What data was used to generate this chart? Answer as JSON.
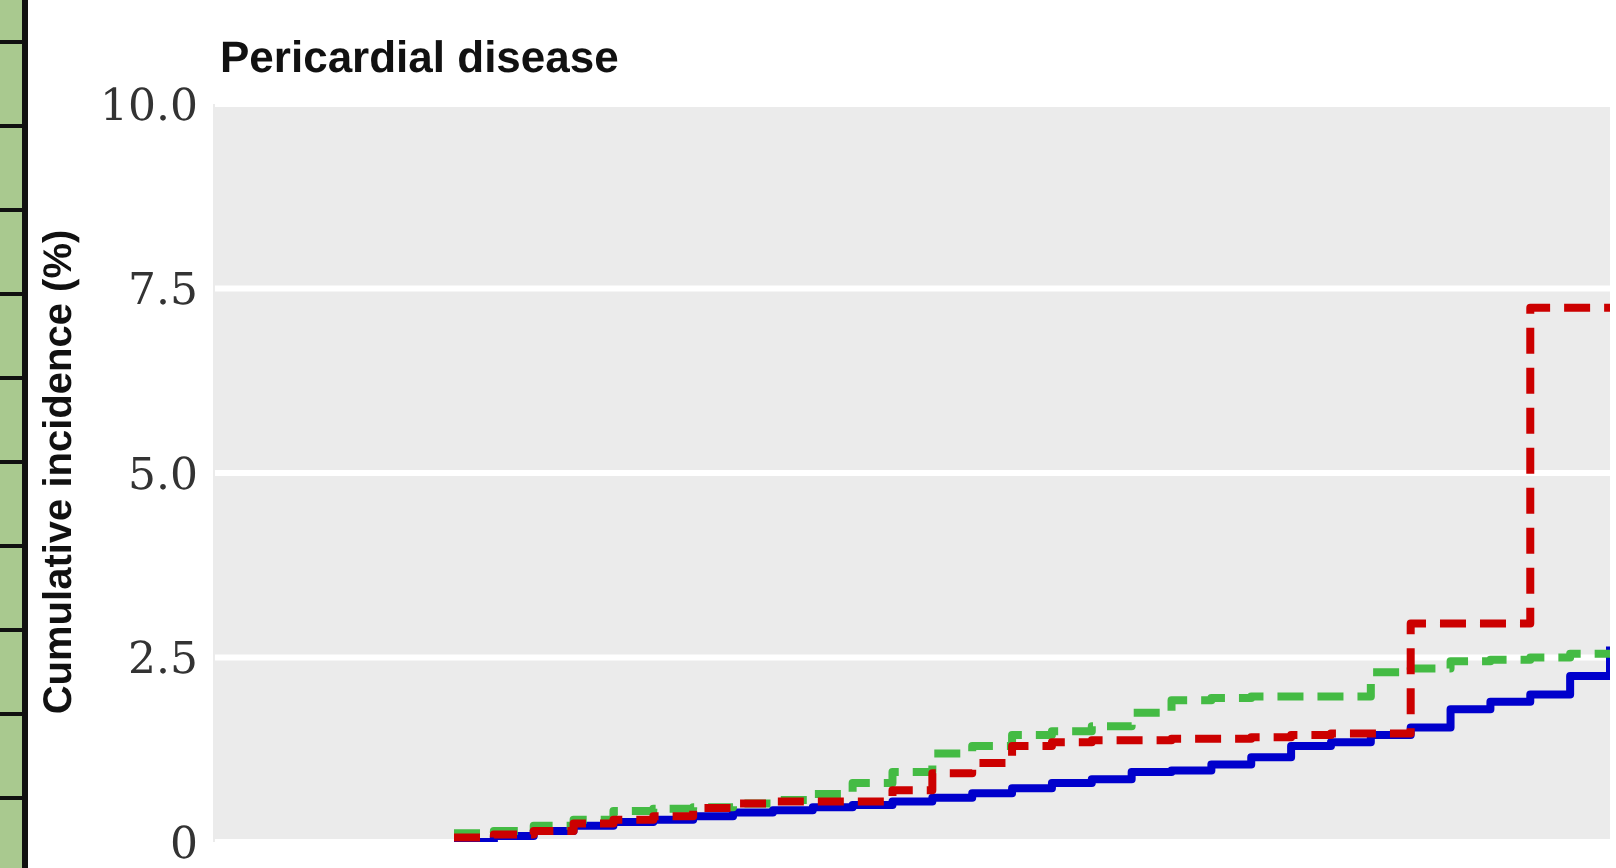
{
  "chart_data": {
    "type": "step",
    "title": "Pericardial disease",
    "ylabel": "Cumulative incidence (%)",
    "categories": [
      null,
      null,
      null,
      null,
      null,
      null,
      null,
      null,
      null,
      null,
      null,
      null,
      null,
      null,
      null,
      null,
      null,
      null,
      null,
      null,
      null,
      null,
      null,
      null,
      null,
      null,
      null,
      null,
      null,
      null
    ],
    "series": [
      {
        "color": "#0000cc",
        "line_style": "solid",
        "values": [
          0,
          0.08,
          0.15,
          0.22,
          0.27,
          0.3,
          0.35,
          0.4,
          0.43,
          0.47,
          0.5,
          0.55,
          0.6,
          0.66,
          0.73,
          0.8,
          0.85,
          0.95,
          0.97,
          1.05,
          1.15,
          1.3,
          1.35,
          1.45,
          1.55,
          1.8,
          1.9,
          2.0,
          2.25,
          2.65
        ]
      },
      {
        "color": "#cc0000",
        "line_style": "dashed",
        "values": [
          0.06,
          0.1,
          0.15,
          0.25,
          0.3,
          0.35,
          0.46,
          0.52,
          0.55,
          0.55,
          0.55,
          0.7,
          0.93,
          1.07,
          1.3,
          1.35,
          1.38,
          1.38,
          1.4,
          1.4,
          1.42,
          1.45,
          1.47,
          1.47,
          2.96,
          2.96,
          2.96,
          7.24,
          7.24,
          7.24
        ]
      },
      {
        "color": "#44bb44",
        "line_style": "dashed",
        "values": [
          0.12,
          0.15,
          0.22,
          0.3,
          0.42,
          0.45,
          0.47,
          0.52,
          0.57,
          0.65,
          0.8,
          0.95,
          1.2,
          1.3,
          1.45,
          1.5,
          1.57,
          1.75,
          1.92,
          1.95,
          1.97,
          1.97,
          1.97,
          2.3,
          2.35,
          2.45,
          2.47,
          2.5,
          2.55,
          2.55
        ]
      }
    ],
    "ylim": [
      0,
      10
    ],
    "yticks": [
      0,
      {
        "value": 2.5,
        "label": "2.5"
      },
      {
        "value": 5,
        "label": "5.0"
      },
      {
        "value": 7.5,
        "label": "7.5"
      },
      {
        "value": 10,
        "label": "10.0"
      }
    ],
    "grid": "y"
  }
}
